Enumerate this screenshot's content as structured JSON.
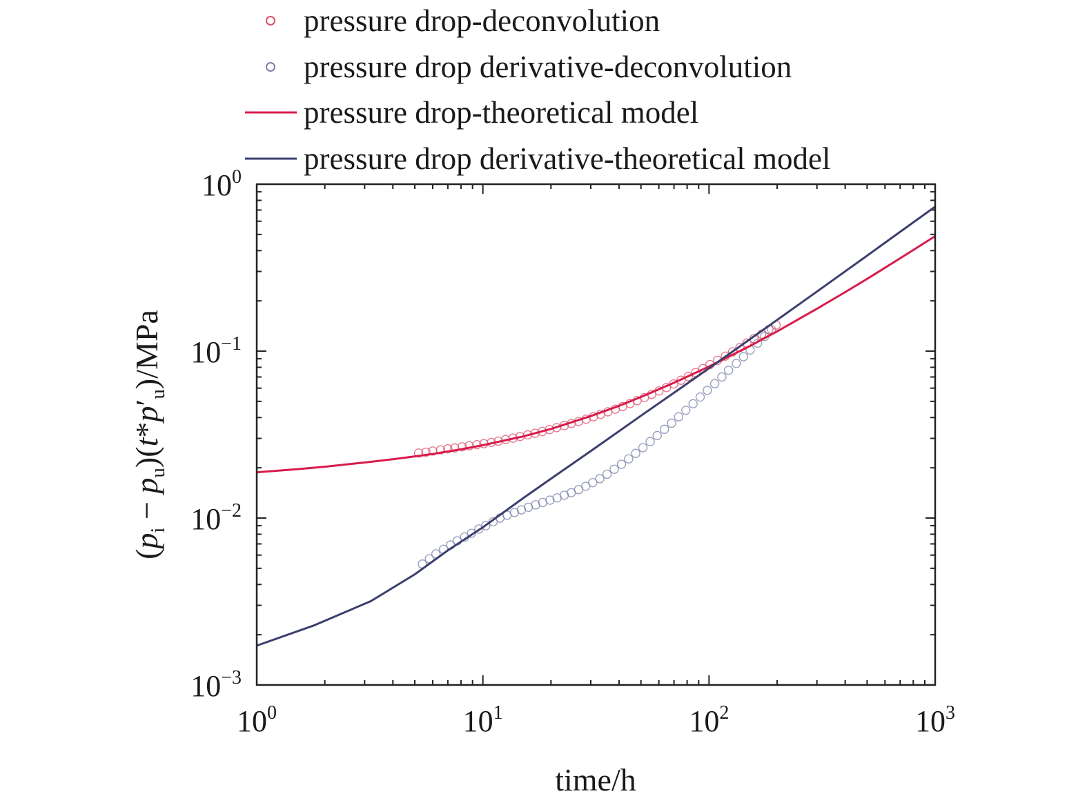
{
  "chart_data": {
    "type": "scatter",
    "title": "",
    "xlabel": "time/h",
    "ylabel_parts": {
      "open": "(",
      "p1": "p",
      "sub_i": "i",
      "minus": " − ",
      "p2": "p",
      "sub_u": "u",
      "close": ")",
      "open2": "(",
      "t": "t",
      "star": "*",
      "p3": "p",
      "prime": "′",
      "sub_u2": "u",
      "close2": ")",
      "unit": "/MPa"
    },
    "x_scale": "log",
    "y_scale": "log",
    "xlim": [
      1,
      1000
    ],
    "ylim": [
      0.001,
      1
    ],
    "x_ticks": [
      {
        "base": "10",
        "exp": "0",
        "value": 1
      },
      {
        "base": "10",
        "exp": "1",
        "value": 10
      },
      {
        "base": "10",
        "exp": "2",
        "value": 100
      },
      {
        "base": "10",
        "exp": "3",
        "value": 1000
      }
    ],
    "y_ticks": [
      {
        "base": "10",
        "exp": "0",
        "value": 1
      },
      {
        "base": "10",
        "exp": "−1",
        "value": 0.1
      },
      {
        "base": "10",
        "exp": "−2",
        "value": 0.01
      },
      {
        "base": "10",
        "exp": "−3",
        "value": 0.001
      }
    ],
    "grid": false,
    "legend_position": "top",
    "series": [
      {
        "name": "pressure drop-deconvolution",
        "kind": "markers",
        "marker": "open-circle",
        "color": "#d94f6a",
        "x": [
          5.2,
          5.6,
          6.0,
          6.5,
          7.0,
          7.5,
          8.1,
          8.7,
          9.4,
          10.1,
          10.9,
          11.7,
          12.6,
          13.6,
          14.6,
          15.8,
          17.0,
          18.3,
          19.7,
          21.2,
          22.9,
          24.6,
          26.5,
          28.6,
          30.8,
          33.2,
          35.7,
          38.5,
          41.5,
          44.7,
          48.1,
          51.8,
          55.8,
          60.1,
          64.8,
          69.8,
          75.2,
          81.0,
          87.3,
          94.0,
          101,
          109,
          118,
          127,
          137,
          147,
          158,
          171,
          184,
          198
        ],
        "y": [
          0.0245,
          0.0248,
          0.0252,
          0.0256,
          0.026,
          0.0263,
          0.0267,
          0.0271,
          0.0275,
          0.0279,
          0.0284,
          0.0289,
          0.0295,
          0.0301,
          0.0308,
          0.0315,
          0.0322,
          0.033,
          0.0339,
          0.0348,
          0.0358,
          0.0368,
          0.0379,
          0.0391,
          0.0404,
          0.0418,
          0.0433,
          0.0449,
          0.0466,
          0.0485,
          0.0505,
          0.0527,
          0.0551,
          0.0577,
          0.0605,
          0.0636,
          0.0669,
          0.0705,
          0.0744,
          0.0786,
          0.0831,
          0.088,
          0.0933,
          0.099,
          0.1051,
          0.1117,
          0.1187,
          0.1263,
          0.1345,
          0.1433
        ]
      },
      {
        "name": "pressure drop derivative-deconvolution",
        "kind": "markers",
        "marker": "open-circle",
        "color": "#7a7fa8",
        "x": [
          5.4,
          5.8,
          6.2,
          6.7,
          7.2,
          7.7,
          8.3,
          8.9,
          9.6,
          10.3,
          11.1,
          11.9,
          12.8,
          13.8,
          14.8,
          15.9,
          17.1,
          18.4,
          19.8,
          21.3,
          22.9,
          24.6,
          26.5,
          28.5,
          30.6,
          32.9,
          35.4,
          38.1,
          41.0,
          44.1,
          47.4,
          51.0,
          54.9,
          59.0,
          63.5,
          68.3,
          73.4,
          79.0,
          85.0,
          91.4,
          98.3,
          106,
          114,
          122,
          132,
          142,
          152,
          164,
          176,
          189
        ],
        "y": [
          0.0053,
          0.0057,
          0.0061,
          0.0065,
          0.0069,
          0.0073,
          0.0077,
          0.0081,
          0.0086,
          0.009,
          0.0095,
          0.01,
          0.0104,
          0.0108,
          0.0112,
          0.0116,
          0.012,
          0.0124,
          0.0128,
          0.0132,
          0.0137,
          0.0142,
          0.0148,
          0.0155,
          0.0163,
          0.0172,
          0.0183,
          0.0196,
          0.021,
          0.0226,
          0.0244,
          0.0264,
          0.0287,
          0.0312,
          0.034,
          0.037,
          0.0404,
          0.0442,
          0.0484,
          0.0531,
          0.0582,
          0.0638,
          0.07,
          0.0768,
          0.0843,
          0.0926,
          0.1016,
          0.1115,
          0.1224,
          0.1345
        ]
      },
      {
        "name": "pressure drop-theoretical model",
        "kind": "line",
        "color": "#d81b4a",
        "x": [
          1,
          1.5,
          2,
          3,
          4,
          5,
          6,
          8,
          10,
          15,
          20,
          30,
          40,
          50,
          70,
          100,
          150,
          200,
          300,
          400,
          500,
          700,
          1000
        ],
        "y": [
          0.0188,
          0.0196,
          0.0203,
          0.0215,
          0.0225,
          0.0234,
          0.0242,
          0.0258,
          0.0273,
          0.0308,
          0.0342,
          0.0408,
          0.047,
          0.0531,
          0.0646,
          0.0808,
          0.1065,
          0.1313,
          0.1793,
          0.2255,
          0.2708,
          0.3595,
          0.488
        ]
      },
      {
        "name": "pressure drop derivative-theoretical model",
        "kind": "line",
        "color": "#3b3f6e",
        "x": [
          1,
          1.8,
          3.2,
          5,
          7,
          10,
          15,
          20,
          30,
          50,
          70,
          100,
          150,
          200,
          300,
          500,
          700,
          1000
        ],
        "y": [
          0.00172,
          0.00228,
          0.00318,
          0.0046,
          0.0064,
          0.0088,
          0.0131,
          0.0172,
          0.0252,
          0.041,
          0.0563,
          0.0789,
          0.1165,
          0.1537,
          0.2274,
          0.3733,
          0.518,
          0.733
        ]
      }
    ]
  }
}
